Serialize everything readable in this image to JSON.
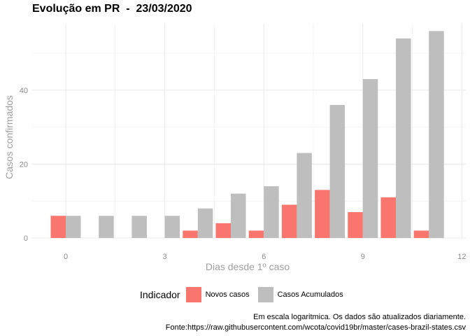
{
  "title": "Evolução em PR  -  23/03/2020",
  "chart_data": {
    "type": "bar",
    "x": [
      0,
      1,
      2,
      3,
      4,
      5,
      6,
      7,
      8,
      9,
      10,
      11
    ],
    "series": [
      {
        "name": "Novos casos",
        "color": "#F8766D",
        "values": [
          6,
          0,
          0,
          0,
          2,
          4,
          2,
          9,
          13,
          7,
          11,
          2
        ]
      },
      {
        "name": "Casos Acumulados",
        "color": "#BEBEBE",
        "values": [
          6,
          6,
          6,
          6,
          8,
          12,
          14,
          23,
          36,
          43,
          54,
          56
        ]
      }
    ],
    "xlabel": "Dias desde 1º caso",
    "ylabel": "Casos confirmados",
    "xticks": [
      "0",
      "3",
      "6",
      "9",
      "12"
    ],
    "xtick_values": [
      0,
      3,
      6,
      9,
      12
    ],
    "yticks": [
      "0",
      "20",
      "40"
    ],
    "ytick_values": [
      0,
      20,
      40
    ],
    "xlim": [
      -0.5,
      12
    ],
    "ylim": [
      0,
      56
    ],
    "grid": true,
    "legend_position": "bottom"
  },
  "legend": {
    "title": "Indicador",
    "items": [
      "Novos casos",
      "Casos Acumulados"
    ]
  },
  "caption": {
    "line1": "Em escala logaritmica. Os dados são atualizados diariamente.",
    "line2": "Fonte:https://raw.githubusercontent.com/wcota/covid19br/master/cases-brazil-states.csv"
  }
}
